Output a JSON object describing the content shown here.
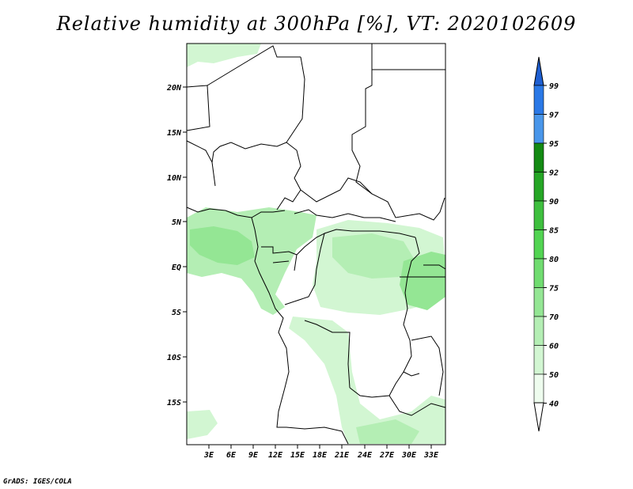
{
  "title": "Relative humidity at 300hPa [%], VT: 2020102609",
  "credit": "GrADS: IGES/COLA",
  "map": {
    "lat_labels": [
      "20N",
      "15N",
      "10N",
      "5N",
      "EQ",
      "5S",
      "10S",
      "15S"
    ],
    "lon_labels": [
      "3E",
      "6E",
      "9E",
      "12E",
      "15E",
      "18E",
      "21E",
      "24E",
      "27E",
      "30E",
      "33E"
    ]
  },
  "colorbar": {
    "labels": [
      "99",
      "97",
      "95",
      "92",
      "90",
      "85",
      "80",
      "75",
      "70",
      "60",
      "50",
      "40"
    ],
    "colors": [
      "#1e5fd2",
      "#2a78e6",
      "#4996ea",
      "#138a13",
      "#25a625",
      "#3ebf3e",
      "#52d452",
      "#70dc70",
      "#94e694",
      "#b4eeb4",
      "#d2f6d2",
      "#eefcee"
    ]
  }
}
